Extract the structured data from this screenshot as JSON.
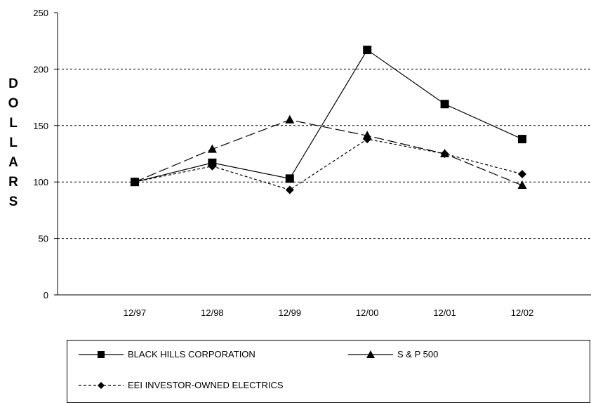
{
  "chart_data": {
    "type": "line",
    "ylabel": "DOLLARS",
    "ylim": [
      0,
      250
    ],
    "yticks": [
      "0",
      "50",
      "100",
      "150",
      "200",
      "250"
    ],
    "categories": [
      "12/97",
      "12/98",
      "12/99",
      "12/00",
      "12/01",
      "12/02"
    ],
    "grid": "horizontal dashed",
    "legend_position": "bottom",
    "series": [
      {
        "name": "BLACK HILLS CORPORATION",
        "marker": "square",
        "line": "solid",
        "values": [
          100,
          117,
          103,
          217,
          169,
          138
        ]
      },
      {
        "name": "S & P 500",
        "marker": "triangle",
        "line": "long-dash",
        "values": [
          100,
          129,
          155,
          141,
          125,
          97
        ]
      },
      {
        "name": "EEI INVESTOR-OWNED ELECTRICS",
        "marker": "diamond",
        "line": "short-dash",
        "values": [
          100,
          114,
          93,
          138,
          125,
          107
        ]
      }
    ]
  }
}
